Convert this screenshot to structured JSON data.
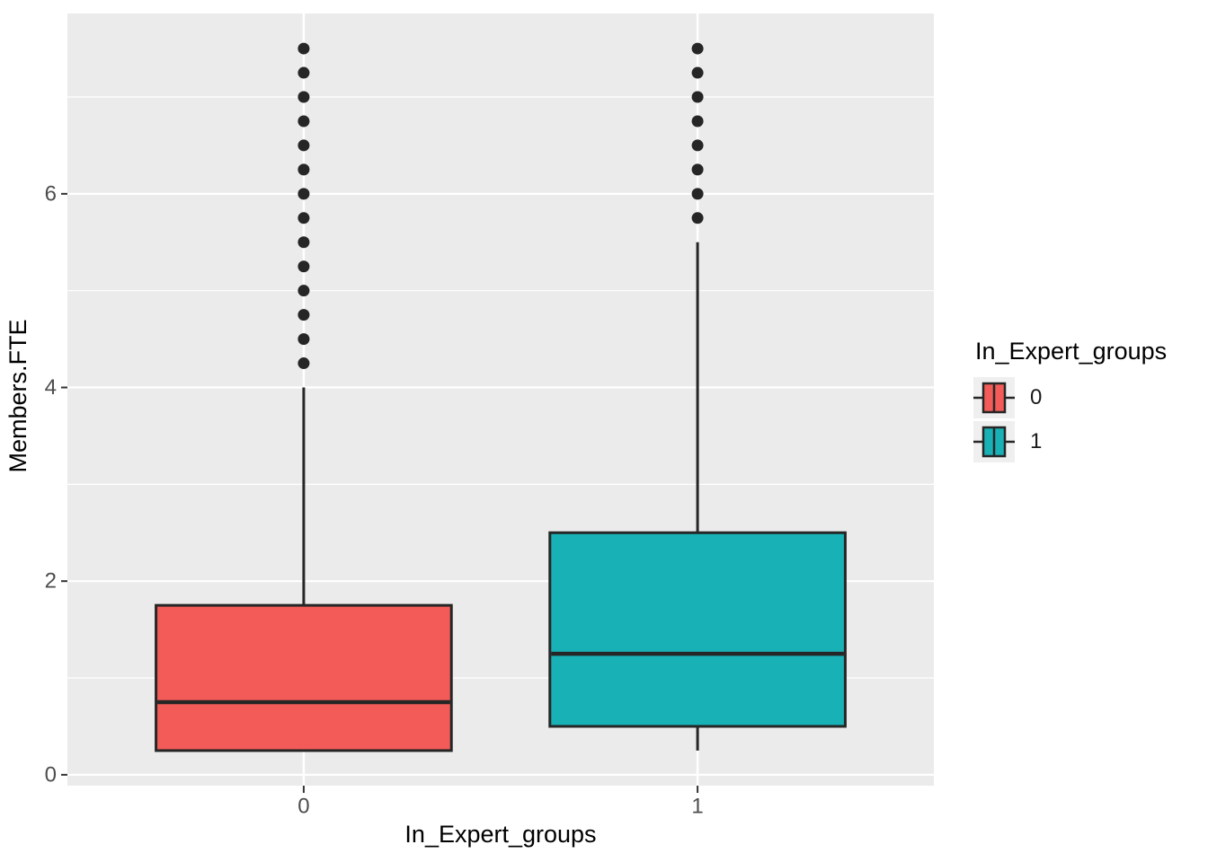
{
  "figure": {
    "background": "#FFFFFF",
    "panel_background": "#EBEBEB",
    "gridline_color": "#FFFFFF",
    "axis_tick_color": "#333333",
    "tick_label_color": "#4D4D4D",
    "title_color": "#000000",
    "legend_key_background": "#EFEFEF",
    "box_stroke_color": "#262626",
    "outlier_color": "#262626"
  },
  "chart_data": {
    "type": "boxplot",
    "title": "",
    "xlabel": "In_Expert_groups",
    "ylabel": "Members.FTE",
    "categories": [
      "0",
      "1"
    ],
    "x_tick_labels": [
      "0",
      "1"
    ],
    "y_tick_labels": [
      "0",
      "2",
      "4",
      "6"
    ],
    "y_major_ticks": [
      0,
      2,
      4,
      6
    ],
    "y_minor_ticks": [
      1,
      3,
      5,
      7
    ],
    "ylim": [
      -0.1125,
      7.8625
    ],
    "grid": true,
    "legend_position": "right",
    "series": [
      {
        "name": "0",
        "fill": "#F25B57",
        "q1": 0.25,
        "median": 0.75,
        "q3": 1.75,
        "whisker_low": 0.25,
        "whisker_high": 4.0,
        "outliers": [
          4.25,
          4.5,
          4.75,
          5.0,
          5.25,
          5.5,
          5.75,
          6.0,
          6.25,
          6.5,
          6.75,
          7.0,
          7.25,
          7.5
        ]
      },
      {
        "name": "1",
        "fill": "#18B1B5",
        "q1": 0.5,
        "median": 1.25,
        "q3": 2.5,
        "whisker_low": 0.25,
        "whisker_high": 5.5,
        "outliers": [
          5.75,
          6.0,
          6.25,
          6.5,
          6.75,
          7.0,
          7.25,
          7.5
        ]
      }
    ],
    "legend": {
      "title": "In_Expert_groups",
      "entries": [
        {
          "label": "0",
          "fill": "#F25B57"
        },
        {
          "label": "1",
          "fill": "#18B1B5"
        }
      ]
    }
  }
}
